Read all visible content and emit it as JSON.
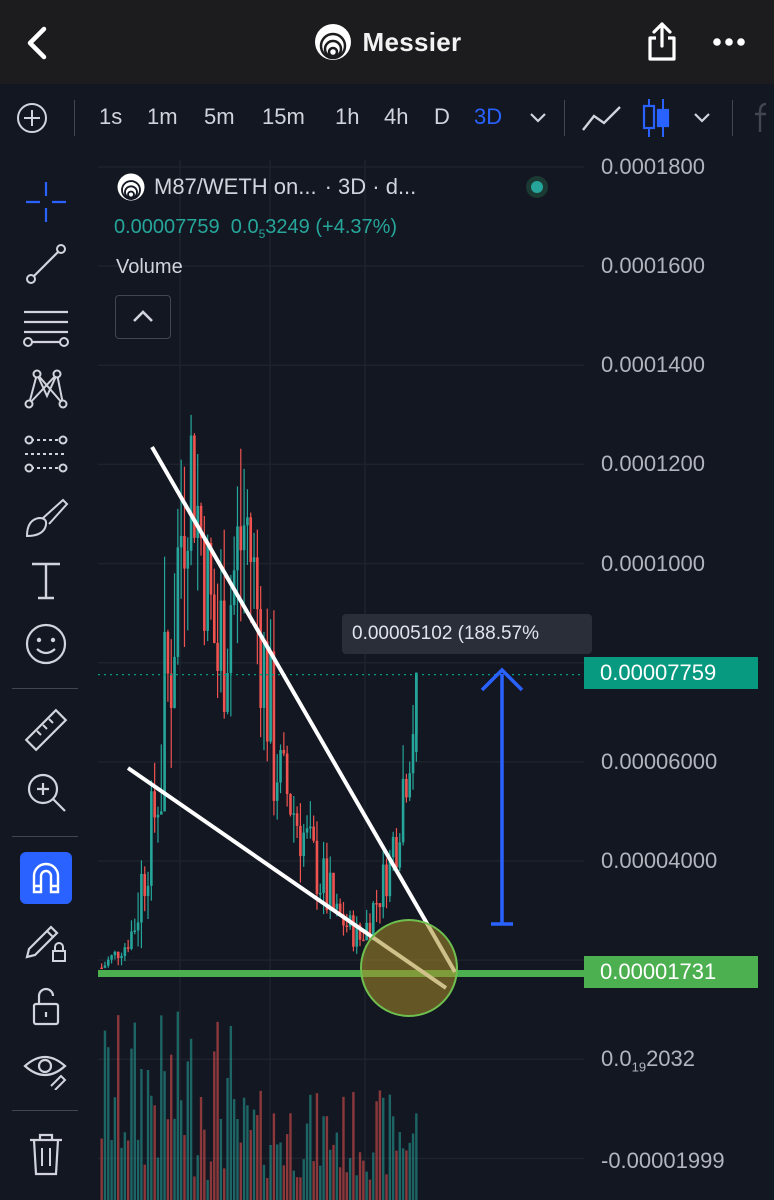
{
  "header": {
    "title": "Messier"
  },
  "toolbar": {
    "timeframes": [
      "1s",
      "1m",
      "5m",
      "15m",
      "1h",
      "4h",
      "D",
      "3D"
    ],
    "active_timeframe": "3D"
  },
  "legend": {
    "symbol": "M87/WETH on...",
    "interval_suffix": "· 3D · d...",
    "price": "0.00007759",
    "change_prefix": "0.0",
    "change_subscript": "5",
    "change_rest": "3249",
    "change_pct": "(+4.37%)",
    "volume_label": "Volume"
  },
  "price_axis": {
    "labels": [
      {
        "text": "0.0001800",
        "value": 0.00018
      },
      {
        "text": "0.0001600",
        "value": 0.00016
      },
      {
        "text": "0.0001400",
        "value": 0.00014
      },
      {
        "text": "0.0001200",
        "value": 0.00012
      },
      {
        "text": "0.0001000",
        "value": 0.0001
      },
      {
        "text": "0.00006000",
        "value": 6e-05
      },
      {
        "text": "0.00004000",
        "value": 4e-05
      }
    ],
    "small_label": {
      "prefix": "0.0",
      "sub": "19",
      "rest": "2032"
    },
    "negative_label": "-0.00001999"
  },
  "current_price_tag": "0.00007759",
  "support_tag": "0.00001731",
  "measure_label": "0.00005102 (188.57%",
  "colors": {
    "up": "#26a69a",
    "down": "#ef5350",
    "accent": "#2962ff",
    "support": "#4caf50",
    "background": "#131722"
  },
  "chart_data": {
    "type": "candlestick",
    "interval": "3D",
    "pair": "M87/WETH",
    "last_price": 7.759e-05,
    "change": 3.249e-06,
    "change_pct": 4.37,
    "ylim": [
      -2e-05,
      0.00018
    ],
    "support_level": 1.731e-05,
    "measured_move": {
      "value": 5.102e-05,
      "pct": 188.57
    },
    "candles_approx": [
      {
        "o": 1.85e-05,
        "h": 2.6e-05,
        "c": 2.4e-05,
        "l": 1.75e-05
      },
      {
        "o": 2.4e-05,
        "h": 6e-05,
        "c": 5.5e-05,
        "l": 2.2e-05
      },
      {
        "o": 5.5e-05,
        "h": 0.000148,
        "c": 0.000125,
        "l": 5e-05
      },
      {
        "o": 0.000125,
        "h": 0.00013,
        "c": 8e-05,
        "l": 6e-05
      },
      {
        "o": 8e-05,
        "h": 0.000145,
        "c": 0.00011,
        "l": 5.5e-05
      },
      {
        "o": 0.00011,
        "h": 0.000115,
        "c": 6e-05,
        "l": 4.5e-05
      },
      {
        "o": 6e-05,
        "h": 7e-05,
        "c": 4.5e-05,
        "l": 3.5e-05
      },
      {
        "o": 4.5e-05,
        "h": 5.5e-05,
        "c": 3e-05,
        "l": 2.5e-05
      },
      {
        "o": 3e-05,
        "h": 3.6e-05,
        "c": 2.4e-05,
        "l": 2.1e-05
      },
      {
        "o": 2.4e-05,
        "h": 4.6e-05,
        "c": 4e-05,
        "l": 2.4e-05
      },
      {
        "o": 4e-05,
        "h": 7.8e-05,
        "c": 7.759e-05,
        "l": 3.8e-05
      }
    ]
  }
}
